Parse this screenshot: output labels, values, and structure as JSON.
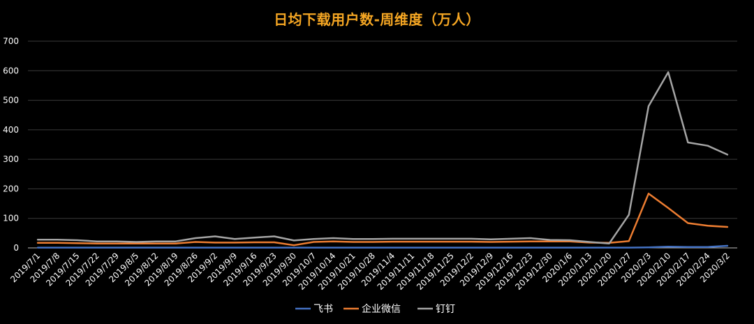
{
  "chart_data": {
    "type": "line",
    "title": "日均下载用户数-周维度（万人）",
    "xlabel": "",
    "ylabel": "",
    "ylim": [
      0,
      700
    ],
    "yticks": [
      0,
      100,
      200,
      300,
      400,
      500,
      600,
      700
    ],
    "grid": true,
    "legend_position": "bottom",
    "categories": [
      "2019/7/1",
      "2019/7/8",
      "2019/7/15",
      "2019/7/22",
      "2019/7/29",
      "2019/8/5",
      "2019/8/12",
      "2019/8/19",
      "2019/8/26",
      "2019/9/2",
      "2019/9/9",
      "2019/9/16",
      "2019/9/23",
      "2019/9/30",
      "2019/10/7",
      "2019/10/14",
      "2019/10/21",
      "2019/10/28",
      "2019/11/4",
      "2019/11/11",
      "2019/11/18",
      "2019/11/25",
      "2019/12/2",
      "2019/12/9",
      "2019/12/16",
      "2019/12/23",
      "2019/12/30",
      "2020/1/6",
      "2020/1/13",
      "2020/1/20",
      "2020/1/27",
      "2020/2/3",
      "2020/2/10",
      "2020/2/17",
      "2020/2/24",
      "2020/3/2"
    ],
    "series": [
      {
        "name": "飞书",
        "color": "#4472c4",
        "values": [
          1,
          1,
          1,
          1,
          1,
          1,
          1,
          1,
          1,
          1,
          1,
          1,
          1,
          1,
          1,
          1,
          1,
          1,
          1,
          1,
          1,
          1,
          1,
          1,
          1,
          1,
          1,
          1,
          1,
          1,
          1,
          2,
          4,
          3,
          3,
          7
        ]
      },
      {
        "name": "企业微信",
        "color": "#ed7d31",
        "values": [
          17,
          17,
          16,
          15,
          15,
          15,
          15,
          15,
          20,
          18,
          18,
          19,
          19,
          9,
          20,
          22,
          20,
          20,
          21,
          21,
          21,
          21,
          21,
          20,
          21,
          22,
          22,
          22,
          18,
          17,
          23,
          184,
          135,
          84,
          75,
          71
        ]
      },
      {
        "name": "钉钉",
        "color": "#a5a5a5",
        "values": [
          28,
          28,
          26,
          22,
          22,
          20,
          22,
          22,
          33,
          39,
          30,
          35,
          39,
          25,
          30,
          33,
          30,
          30,
          31,
          31,
          31,
          31,
          31,
          29,
          31,
          33,
          27,
          26,
          20,
          15,
          112,
          480,
          595,
          357,
          346,
          316
        ]
      }
    ]
  }
}
